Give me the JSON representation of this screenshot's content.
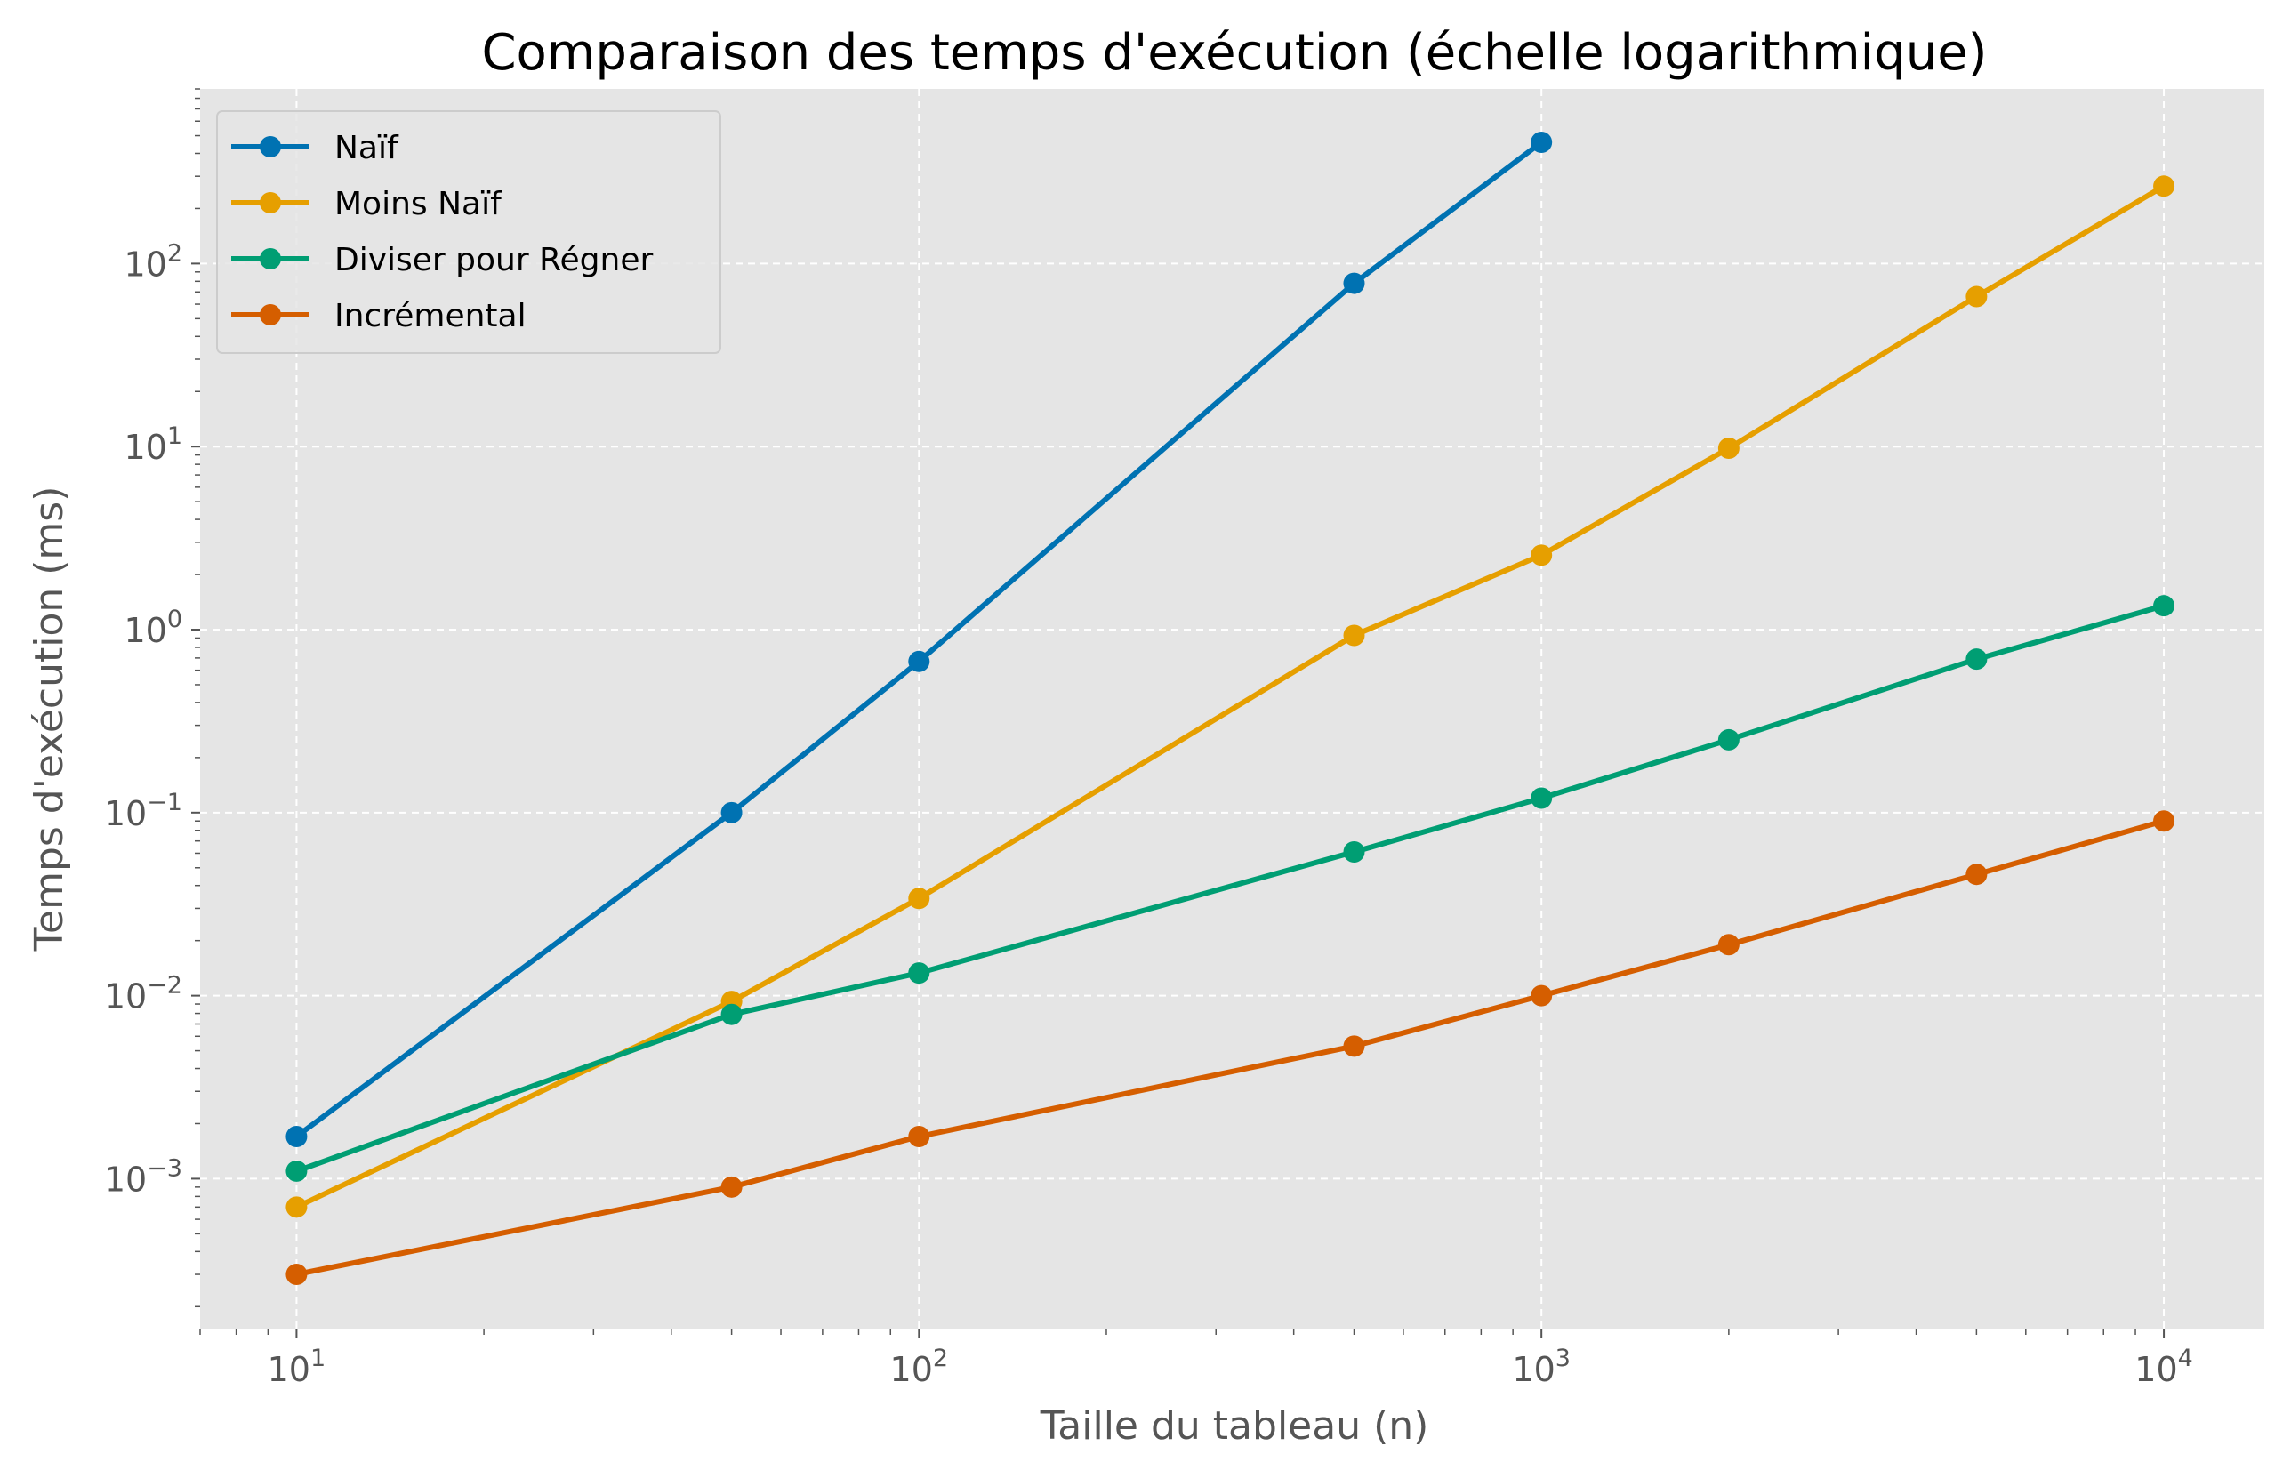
{
  "chart_data": {
    "type": "line",
    "title": "Comparaison des temps d'exécution (échelle logarithmique)",
    "xlabel": "Taille du tableau (n)",
    "ylabel": "Temps d'exécution (ms)",
    "xscale": "log",
    "yscale": "log",
    "xlim": [
      7,
      14500
    ],
    "ylim": [
      0.00015,
      900
    ],
    "xticks": [
      {
        "value": 10,
        "base": "10",
        "exp": "1"
      },
      {
        "value": 100,
        "base": "10",
        "exp": "2"
      },
      {
        "value": 1000,
        "base": "10",
        "exp": "3"
      },
      {
        "value": 10000,
        "base": "10",
        "exp": "4"
      }
    ],
    "yticks": [
      {
        "value": 0.001,
        "base": "10",
        "exp": "−3"
      },
      {
        "value": 0.01,
        "base": "10",
        "exp": "−2"
      },
      {
        "value": 0.1,
        "base": "10",
        "exp": "−1"
      },
      {
        "value": 1,
        "base": "10",
        "exp": "0"
      },
      {
        "value": 10,
        "base": "10",
        "exp": "1"
      },
      {
        "value": 100,
        "base": "10",
        "exp": "2"
      }
    ],
    "grid": true,
    "legend_position": "top-left",
    "background": "#e5e5e5",
    "series": [
      {
        "name": "Naïf",
        "color": "#0072b2",
        "x": [
          10,
          50,
          100,
          500,
          1000
        ],
        "y": [
          0.0017,
          0.1,
          0.67,
          78,
          460
        ]
      },
      {
        "name": "Moins Naïf",
        "color": "#e69f00",
        "x": [
          10,
          50,
          100,
          500,
          1000,
          2000,
          5000,
          10000
        ],
        "y": [
          0.0007,
          0.0093,
          0.034,
          0.93,
          2.55,
          9.8,
          66,
          265
        ]
      },
      {
        "name": "Diviser pour Régner",
        "color": "#009e73",
        "x": [
          10,
          50,
          100,
          500,
          1000,
          2000,
          5000,
          10000
        ],
        "y": [
          0.0011,
          0.0079,
          0.0133,
          0.061,
          0.12,
          0.25,
          0.69,
          1.35
        ]
      },
      {
        "name": "Incrémental",
        "color": "#d55e00",
        "x": [
          10,
          50,
          100,
          500,
          1000,
          2000,
          5000,
          10000
        ],
        "y": [
          0.0003,
          0.0009,
          0.0017,
          0.0053,
          0.01,
          0.019,
          0.046,
          0.09
        ]
      }
    ]
  }
}
